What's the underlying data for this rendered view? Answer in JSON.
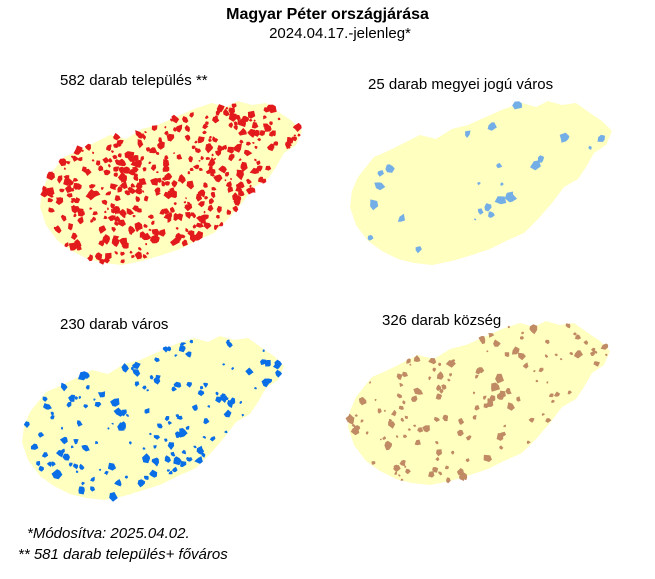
{
  "title": "Magyar Péter országjárása",
  "subtitle": "2024.04.17.-jelenleg*",
  "colors": {
    "land": "#ffffbf",
    "red": "#e31a1c",
    "lightblue": "#74aee6",
    "blue": "#0a6ee6",
    "brown": "#bf8a64"
  },
  "panels": [
    {
      "label": "582 darab település **",
      "color": "#e31a1c",
      "density": "high"
    },
    {
      "label": "25 darab megyei jogú város",
      "color": "#74aee6",
      "density": "low"
    },
    {
      "label": "230 darab város",
      "color": "#0a6ee6",
      "density": "medium"
    },
    {
      "label": "326 darab község",
      "color": "#bf8a64",
      "density": "medium"
    }
  ],
  "notes": {
    "modified": "*Módosítva: 2025.04.02.",
    "footnote": "** 581 darab település+ főváros"
  }
}
